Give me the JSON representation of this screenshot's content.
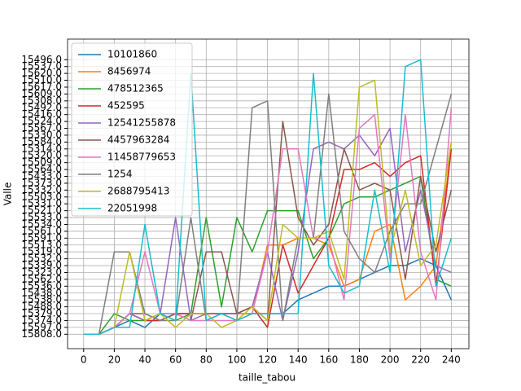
{
  "chart_data": {
    "type": "line",
    "xlabel": "taille_tabou",
    "ylabel": "Valle",
    "x": [
      0,
      10,
      20,
      30,
      40,
      50,
      60,
      70,
      80,
      90,
      100,
      110,
      120,
      130,
      140,
      150,
      160,
      170,
      180,
      190,
      200,
      210,
      220,
      230,
      240
    ],
    "xlim": [
      -10.5,
      251.5
    ],
    "xticks": [
      0,
      20,
      40,
      60,
      80,
      100,
      120,
      140,
      160,
      180,
      200,
      220,
      240
    ],
    "ylim": [
      -2.1,
      43.0
    ],
    "yticks": [
      {
        "value": 0,
        "label": "15808.0"
      },
      {
        "value": 1,
        "label": "15597.0"
      },
      {
        "value": 2,
        "label": "15374.0"
      },
      {
        "value": 3,
        "label": "15379.0"
      },
      {
        "value": 4,
        "label": "15488.0"
      },
      {
        "value": 5,
        "label": "15538.0"
      },
      {
        "value": 6,
        "label": "15438.0"
      },
      {
        "value": 7,
        "label": "15536.0"
      },
      {
        "value": 8,
        "label": "15562.0"
      },
      {
        "value": 9,
        "label": "15323.0"
      },
      {
        "value": 10,
        "label": "15339.0"
      },
      {
        "value": 11,
        "label": "15532.0"
      },
      {
        "value": 12,
        "label": "15319.0"
      },
      {
        "value": 13,
        "label": "15513.0"
      },
      {
        "value": 14,
        "label": "15591.0"
      },
      {
        "value": 15,
        "label": "15561.0"
      },
      {
        "value": 16,
        "label": "15534.0"
      },
      {
        "value": 17,
        "label": "15533.0"
      },
      {
        "value": 18,
        "label": "15521.0"
      },
      {
        "value": 19,
        "label": "15331.0"
      },
      {
        "value": 20,
        "label": "15503.0"
      },
      {
        "value": 21,
        "label": "15332.0"
      },
      {
        "value": 22,
        "label": "15373.0"
      },
      {
        "value": 23,
        "label": "15433.0"
      },
      {
        "value": 24,
        "label": "15564.0"
      },
      {
        "value": 25,
        "label": "15509.0"
      },
      {
        "value": 26,
        "label": "15320.0"
      },
      {
        "value": 27,
        "label": "15314.0"
      },
      {
        "value": 28,
        "label": "15584.0"
      },
      {
        "value": 29,
        "label": "15330.0"
      },
      {
        "value": 30,
        "label": "15567.0"
      },
      {
        "value": 31,
        "label": "15524.0"
      },
      {
        "value": 32,
        "label": "15416.0"
      },
      {
        "value": 33,
        "label": "15492.0"
      },
      {
        "value": 34,
        "label": "15308.0"
      },
      {
        "value": 35,
        "label": "15609.0"
      },
      {
        "value": 36,
        "label": "15617.0"
      },
      {
        "value": 37,
        "label": "15510.0"
      },
      {
        "value": 38,
        "label": "15620.0"
      },
      {
        "value": 39,
        "label": "15537.0"
      },
      {
        "value": 40,
        "label": "15496.0"
      }
    ],
    "grid": true,
    "legend": "upper-left",
    "series": [
      {
        "name": "10101860",
        "color": "#1f77b4",
        "values": [
          0,
          0,
          1,
          2,
          1,
          3,
          3,
          3,
          3,
          3,
          3,
          3,
          3,
          3,
          5,
          6,
          7,
          7,
          8,
          9,
          10,
          10,
          11,
          10,
          5
        ]
      },
      {
        "name": "8456974",
        "color": "#ff7f0e",
        "values": [
          0,
          0,
          1,
          3,
          2,
          2,
          3,
          3,
          3,
          3,
          3,
          3,
          13,
          13,
          14,
          14,
          13,
          7,
          8,
          15,
          16,
          5,
          7,
          10,
          27
        ]
      },
      {
        "name": "478512365",
        "color": "#2ca02c",
        "values": [
          0,
          0,
          3,
          2,
          2,
          3,
          2,
          3,
          17,
          4,
          17,
          12,
          18,
          18,
          18,
          11,
          14,
          19,
          20,
          20,
          21,
          22,
          23,
          8,
          7
        ]
      },
      {
        "name": "452595",
        "color": "#d62728",
        "values": [
          0,
          0,
          1,
          3,
          2,
          2,
          3,
          3,
          3,
          3,
          3,
          4,
          1,
          13,
          6,
          10,
          14,
          24,
          24,
          25,
          23,
          25,
          26,
          7,
          27
        ]
      },
      {
        "name": "12541255878",
        "color": "#9467bd",
        "values": [
          0,
          0,
          1,
          3,
          2,
          3,
          17,
          2,
          3,
          3,
          3,
          4,
          12,
          2,
          12,
          27,
          28,
          27,
          29,
          26,
          30,
          12,
          21,
          10,
          9
        ]
      },
      {
        "name": "4457963284",
        "color": "#8c564b",
        "values": [
          0,
          0,
          1,
          3,
          3,
          2,
          3,
          2,
          12,
          12,
          3,
          4,
          2,
          31,
          17,
          13,
          16,
          27,
          21,
          22,
          21,
          8,
          23,
          12,
          21
        ]
      },
      {
        "name": "11458779653",
        "color": "#e377c2",
        "values": [
          0,
          0,
          1,
          3,
          12,
          3,
          3,
          2,
          2,
          2,
          2,
          3,
          12,
          27,
          27,
          14,
          14,
          5,
          30,
          32,
          11,
          32,
          12,
          5,
          33
        ]
      },
      {
        "name": "1254",
        "color": "#7f7f7f",
        "values": [
          0,
          0,
          12,
          12,
          3,
          2,
          2,
          17,
          2,
          3,
          2,
          33,
          34,
          2,
          14,
          14,
          35,
          15,
          11,
          9,
          15,
          19,
          19,
          27,
          35
        ]
      },
      {
        "name": "2688795413",
        "color": "#bcbd22",
        "values": [
          0,
          0,
          1,
          12,
          2,
          3,
          1,
          3,
          3,
          1,
          2,
          4,
          2,
          16,
          14,
          14,
          15,
          8,
          36,
          37,
          12,
          21,
          10,
          13,
          28
        ]
      },
      {
        "name": "22051998",
        "color": "#17becf",
        "values": [
          0,
          0,
          1,
          1,
          16,
          3,
          2,
          38,
          2,
          3,
          2,
          3,
          3,
          3,
          3,
          38,
          10,
          6,
          7,
          21,
          9,
          39,
          40,
          7,
          14
        ]
      }
    ]
  }
}
